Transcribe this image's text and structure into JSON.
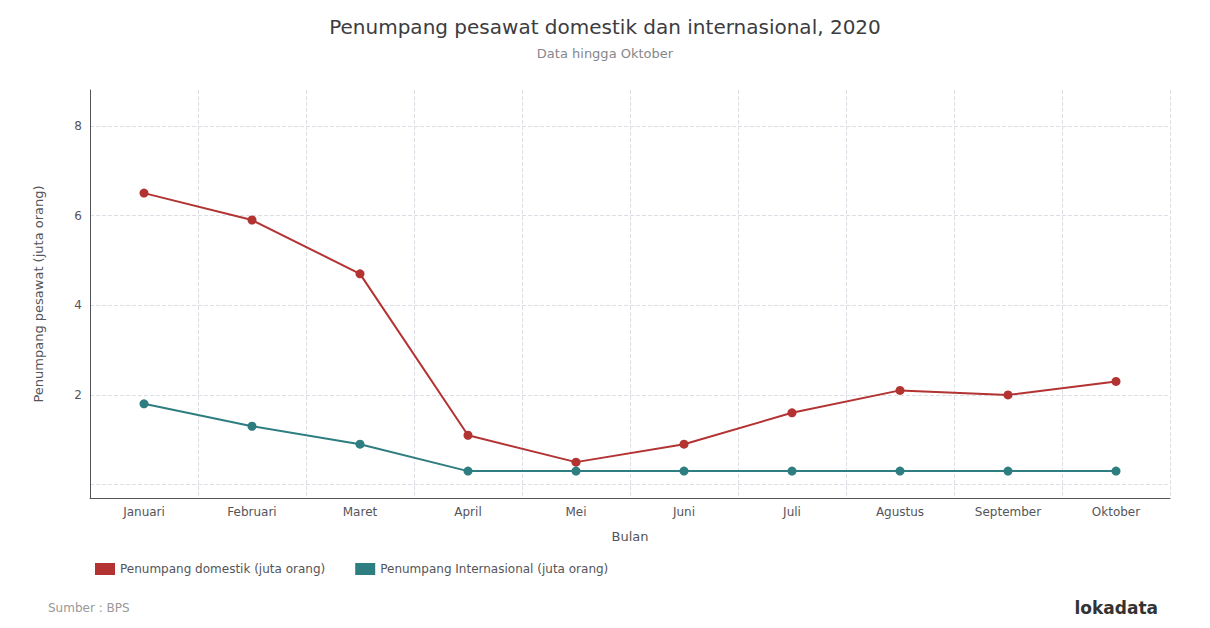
{
  "chart_data": {
    "type": "line",
    "title": "Penumpang pesawat domestik dan internasional, 2020",
    "subtitle": "Data hingga Oktober",
    "xlabel": "Bulan",
    "ylabel": "Penumpang pesawat (juta orang)",
    "categories": [
      "Januari",
      "Februari",
      "Maret",
      "April",
      "Mei",
      "Juni",
      "Juli",
      "Agustus",
      "September",
      "Oktober"
    ],
    "series": [
      {
        "name": "Penumpang domestik (juta orang)",
        "color": "#b33232",
        "values": [
          6.5,
          5.9,
          4.7,
          1.1,
          0.5,
          0.9,
          1.6,
          2.1,
          2.0,
          2.3
        ]
      },
      {
        "name": "Penumpang Internasional (juta orang)",
        "color": "#2e7d80",
        "values": [
          1.8,
          1.3,
          0.9,
          0.3,
          0.3,
          0.3,
          0.3,
          0.3,
          0.3,
          0.3
        ]
      }
    ],
    "ylim": [
      -0.3,
      8.8
    ],
    "yticks": [
      {
        "value": 0,
        "label": ""
      },
      2,
      4,
      6,
      8
    ],
    "grid": true,
    "legend": "lower left",
    "marker": "circle",
    "annotations": [
      "Sumber : BPS",
      "lokadata"
    ]
  }
}
